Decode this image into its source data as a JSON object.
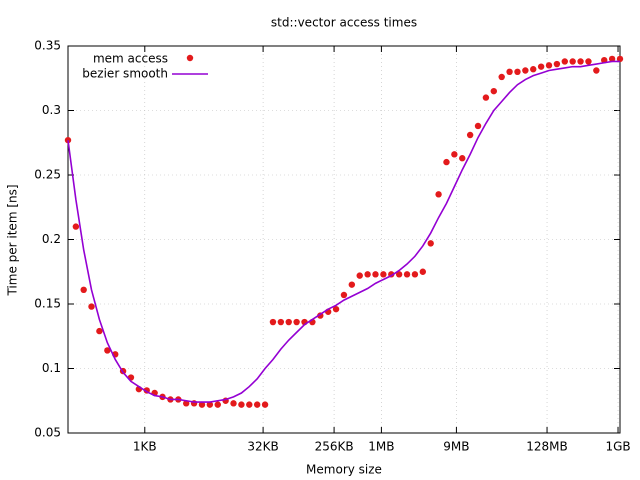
{
  "chart_data": {
    "type": "line",
    "title": "std::vector access times",
    "x_label": "Memory size",
    "y_label": "Time per item [ns]",
    "x": [
      108,
      136,
      171,
      215,
      271,
      342,
      431,
      542,
      683,
      861,
      1085,
      1367,
      1722,
      2170,
      2734,
      3444,
      4340,
      5468,
      6888,
      8679,
      10935,
      13777,
      17358,
      21870,
      27554,
      34716,
      43740,
      55108,
      69432,
      87480,
      110215,
      138865,
      174960,
      220430,
      277729,
      349920,
      440861,
      555459,
      699840,
      881722,
      1110918,
      1399681,
      1763444,
      2221836,
      2799362,
      3526888,
      4443672,
      5598724,
      7053775,
      8887344,
      11197448,
      14107550,
      17774688,
      22394896,
      28215100,
      35549376,
      44789792,
      56430200,
      71098752,
      89579584,
      112860400,
      142197504,
      179159168,
      225720800,
      284395008,
      358318336,
      451441600,
      568790016,
      716636672,
      902883200,
      1137580032
    ],
    "series": [
      {
        "name": "mem access",
        "color": "#e31a1c",
        "mode": "points",
        "values": [
          0.277,
          0.21,
          0.161,
          0.148,
          0.129,
          0.114,
          0.111,
          0.098,
          0.093,
          0.084,
          0.083,
          0.081,
          0.078,
          0.076,
          0.076,
          0.073,
          0.073,
          0.072,
          0.072,
          0.072,
          0.075,
          0.073,
          0.072,
          0.072,
          0.072,
          0.072,
          0.136,
          0.136,
          0.136,
          0.136,
          0.136,
          0.136,
          0.141,
          0.144,
          0.146,
          0.157,
          0.165,
          0.172,
          0.173,
          0.173,
          0.173,
          0.173,
          0.173,
          0.173,
          0.173,
          0.175,
          0.197,
          0.235,
          0.26,
          0.266,
          0.263,
          0.281,
          0.288,
          0.31,
          0.315,
          0.326,
          0.33,
          0.33,
          0.331,
          0.332,
          0.334,
          0.335,
          0.336,
          0.338,
          0.338,
          0.338,
          0.338,
          0.331,
          0.339,
          0.34,
          0.34
        ]
      },
      {
        "name": "bezier smooth",
        "color": "#9400d3",
        "mode": "line",
        "values": [
          0.277,
          0.231,
          0.192,
          0.161,
          0.138,
          0.12,
          0.107,
          0.097,
          0.09,
          0.086,
          0.082,
          0.079,
          0.078,
          0.076,
          0.076,
          0.075,
          0.074,
          0.074,
          0.074,
          0.075,
          0.076,
          0.078,
          0.081,
          0.086,
          0.092,
          0.1,
          0.107,
          0.115,
          0.122,
          0.128,
          0.134,
          0.138,
          0.142,
          0.146,
          0.149,
          0.153,
          0.156,
          0.159,
          0.162,
          0.166,
          0.169,
          0.172,
          0.176,
          0.181,
          0.187,
          0.195,
          0.205,
          0.217,
          0.228,
          0.241,
          0.254,
          0.266,
          0.279,
          0.29,
          0.3,
          0.307,
          0.314,
          0.32,
          0.324,
          0.327,
          0.329,
          0.331,
          0.332,
          0.333,
          0.334,
          0.334,
          0.335,
          0.336,
          0.337,
          0.338,
          0.338
        ]
      }
    ],
    "xscale": "log",
    "xlim": [
      108,
      1137580032
    ],
    "xticks": [
      {
        "value": 1024,
        "label": "1KB"
      },
      {
        "value": 32768,
        "label": "32KB"
      },
      {
        "value": 262144,
        "label": "256KB"
      },
      {
        "value": 1048576,
        "label": "1MB"
      },
      {
        "value": 9437184,
        "label": "9MB"
      },
      {
        "value": 134217728,
        "label": "128MB"
      },
      {
        "value": 1073741824,
        "label": "1GB"
      }
    ],
    "ylim": [
      0.05,
      0.35
    ],
    "yticks": [
      0.05,
      0.1,
      0.15,
      0.2,
      0.25,
      0.3,
      0.35
    ],
    "grid": true,
    "legend": "top-left"
  }
}
